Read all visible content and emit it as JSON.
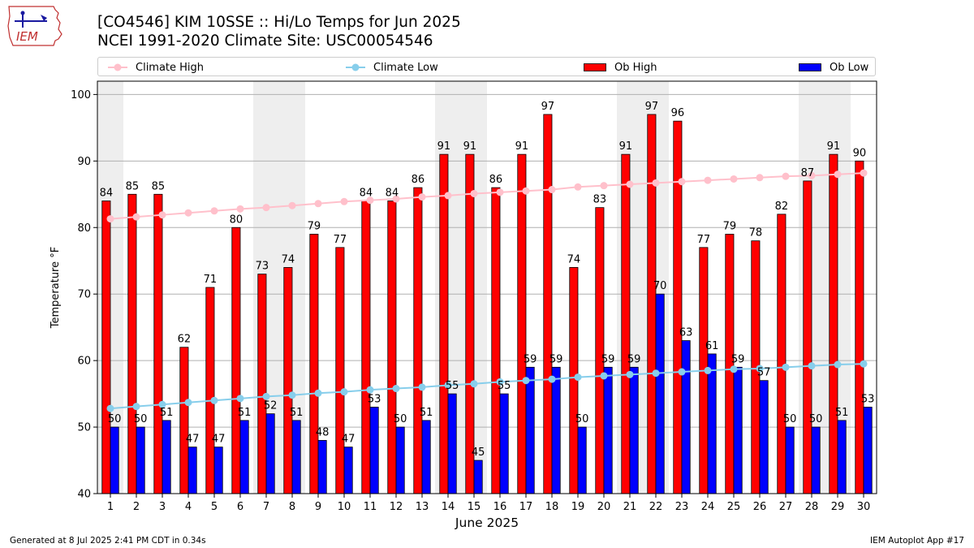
{
  "header": {
    "logo_text": "IEM",
    "title_line1": "[CO4546] KIM 10SSE :: Hi/Lo Temps for Jun 2025",
    "title_line2": "NCEI 1991-2020 Climate Site: USC00054546"
  },
  "legend": {
    "climate_high": "Climate High",
    "climate_low": "Climate Low",
    "ob_high": "Ob High",
    "ob_low": "Ob Low"
  },
  "footer": {
    "generated": "Generated at 8 Jul 2025 2:41 PM CDT in 0.34s",
    "app": "IEM Autoplot App #17"
  },
  "colors": {
    "ob_high": "#ff0000",
    "ob_low": "#0000ff",
    "climate_high": "#ffc0cb",
    "climate_low": "#87ceeb",
    "weekend_shade": "#eeeeee"
  },
  "chart_data": {
    "type": "bar",
    "xlabel": "June 2025",
    "ylabel": "Temperature °F",
    "ylim": [
      40,
      102
    ],
    "yticks": [
      40,
      50,
      60,
      70,
      80,
      90,
      100
    ],
    "grid": "horizontal",
    "legend_position": "top",
    "categories": [
      "1",
      "2",
      "3",
      "4",
      "5",
      "6",
      "7",
      "8",
      "9",
      "10",
      "11",
      "12",
      "13",
      "14",
      "15",
      "16",
      "17",
      "18",
      "19",
      "20",
      "21",
      "22",
      "23",
      "24",
      "25",
      "26",
      "27",
      "28",
      "29",
      "30"
    ],
    "shaded_days": [
      "1",
      "7",
      "8",
      "14",
      "15",
      "21",
      "22",
      "28",
      "29"
    ],
    "series": [
      {
        "name": "Ob High",
        "type": "bar",
        "values": [
          84,
          85,
          85,
          62,
          71,
          80,
          73,
          74,
          79,
          77,
          84,
          84,
          86,
          91,
          91,
          86,
          91,
          97,
          74,
          83,
          91,
          97,
          96,
          77,
          79,
          78,
          82,
          87,
          91,
          90
        ]
      },
      {
        "name": "Ob Low",
        "type": "bar",
        "values": [
          50,
          50,
          51,
          47,
          47,
          51,
          52,
          51,
          48,
          47,
          53,
          50,
          51,
          55,
          45,
          55,
          59,
          59,
          50,
          59,
          59,
          70,
          63,
          61,
          59,
          57,
          50,
          50,
          51,
          53
        ]
      },
      {
        "name": "Climate High",
        "type": "line",
        "values": [
          81.3,
          81.6,
          81.9,
          82.2,
          82.5,
          82.8,
          83.0,
          83.3,
          83.6,
          83.9,
          84.1,
          84.3,
          84.6,
          84.8,
          85.1,
          85.3,
          85.5,
          85.7,
          86.1,
          86.3,
          86.5,
          86.7,
          86.9,
          87.1,
          87.3,
          87.5,
          87.7,
          87.8,
          88.0,
          88.2
        ]
      },
      {
        "name": "Climate Low",
        "type": "line",
        "values": [
          52.8,
          53.1,
          53.4,
          53.7,
          54.0,
          54.3,
          54.6,
          54.8,
          55.1,
          55.3,
          55.6,
          55.8,
          56.0,
          56.3,
          56.5,
          56.8,
          57.0,
          57.2,
          57.5,
          57.7,
          57.9,
          58.1,
          58.3,
          58.5,
          58.7,
          58.8,
          59.0,
          59.2,
          59.4,
          59.5
        ]
      }
    ]
  }
}
